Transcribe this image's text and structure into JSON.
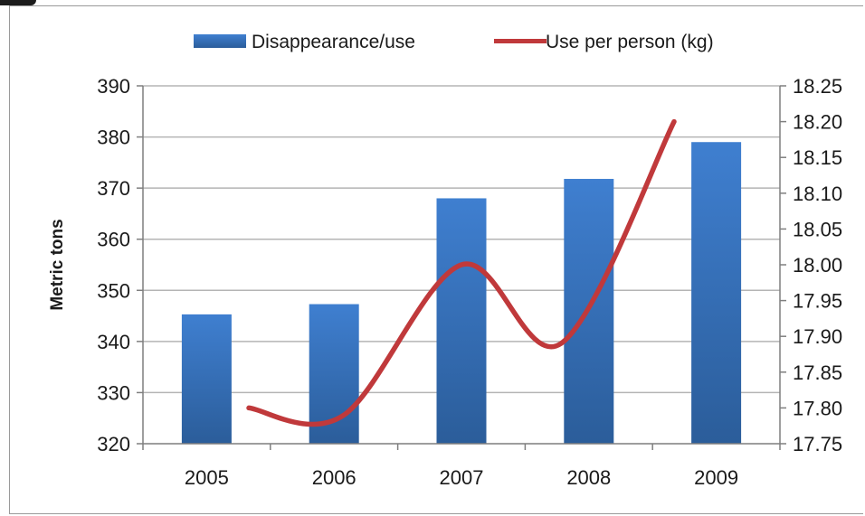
{
  "chart_data": {
    "type": "bar+line",
    "categories": [
      "2005",
      "2006",
      "2007",
      "2008",
      "2009"
    ],
    "series": [
      {
        "name": "Disappearance/use",
        "type": "bar",
        "axis": "left",
        "values": [
          345.3,
          347.3,
          368.0,
          371.8,
          379.0
        ]
      },
      {
        "name": "Use per person (kg)",
        "type": "line",
        "axis": "right",
        "values": [
          17.8,
          17.79,
          18.0,
          17.89,
          18.2
        ]
      }
    ],
    "ylabel": "Metric tons",
    "ylim": [
      320,
      390
    ],
    "yticks": [
      "320",
      "330",
      "340",
      "350",
      "360",
      "370",
      "380",
      "390"
    ],
    "y2lim": [
      17.75,
      18.25
    ],
    "y2ticks": [
      "17.75",
      "17.80",
      "17.85",
      "17.90",
      "17.95",
      "18.00",
      "18.05",
      "18.10",
      "18.15",
      "18.20",
      "18.25"
    ],
    "grid": true,
    "legend": "top",
    "colors": {
      "bar_top": "#3f7fd0",
      "bar_bottom": "#2b5d9a",
      "line": "#c0393b",
      "grid": "#b5b5b5",
      "axis": "#7f7f7f"
    }
  }
}
